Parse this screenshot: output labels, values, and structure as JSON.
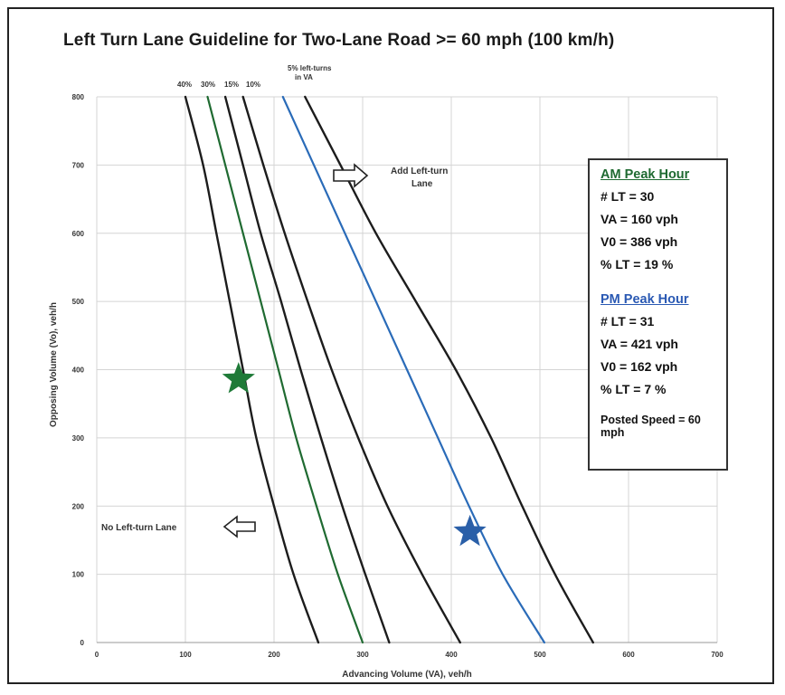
{
  "title": "Left Turn Lane Guideline for Two-Lane Road >= 60 mph (100 km/h)",
  "top_labels": {
    "pct40": "40%",
    "pct30": "30%",
    "pct15": "15%",
    "pct10": "10%",
    "pct5_line1": "5% left-turns",
    "pct5_line2": "in VA"
  },
  "annotations": {
    "add_lane_line1": "Add Left-turn",
    "add_lane_line2": "Lane",
    "no_lane": "No Left-turn Lane"
  },
  "info_box": {
    "am_header": "AM Peak Hour",
    "am_lt": "# LT = 30",
    "am_va": "VA = 160 vph",
    "am_vo": "V0 = 386 vph",
    "am_pct": "% LT = 19 %",
    "pm_header": "PM Peak Hour",
    "pm_lt": "# LT = 31",
    "pm_va": "VA = 421 vph",
    "pm_vo": "V0 = 162 vph",
    "pm_pct": "% LT = 7 %",
    "posted_speed": "Posted Speed = 60 mph"
  },
  "colors": {
    "curve_black": "#1c1c1c",
    "curve_green": "#1f6a31",
    "curve_blue": "#2a6bb8",
    "am_star": "#1f7a38",
    "pm_star": "#2a5fa8",
    "grid": "#d4d4d4"
  },
  "chart_data": {
    "type": "line",
    "title": "Left Turn Lane Guideline for Two-Lane Road >= 60 mph (100 km/h)",
    "xlabel": "Advancing Volume (VA), veh/h",
    "ylabel": "Opposing Volume (Vo), veh/h",
    "xlim": [
      0,
      700
    ],
    "ylim": [
      0,
      800
    ],
    "xticks": [
      0,
      100,
      200,
      300,
      400,
      500,
      600,
      700
    ],
    "yticks": [
      0,
      100,
      200,
      300,
      400,
      500,
      600,
      700,
      800
    ],
    "grid": true,
    "series": [
      {
        "name": "40%",
        "color": "black",
        "points": [
          [
            100,
            800
          ],
          [
            120,
            700
          ],
          [
            135,
            600
          ],
          [
            150,
            500
          ],
          [
            165,
            400
          ],
          [
            180,
            300
          ],
          [
            200,
            200
          ],
          [
            222,
            100
          ],
          [
            250,
            0
          ]
        ]
      },
      {
        "name": "30%",
        "color": "green",
        "points": [
          [
            125,
            800
          ],
          [
            145,
            700
          ],
          [
            165,
            600
          ],
          [
            185,
            500
          ],
          [
            205,
            400
          ],
          [
            225,
            300
          ],
          [
            248,
            200
          ],
          [
            272,
            100
          ],
          [
            300,
            0
          ]
        ]
      },
      {
        "name": "15%",
        "color": "black",
        "points": [
          [
            145,
            800
          ],
          [
            165,
            700
          ],
          [
            185,
            600
          ],
          [
            208,
            500
          ],
          [
            230,
            400
          ],
          [
            253,
            300
          ],
          [
            277,
            200
          ],
          [
            303,
            100
          ],
          [
            330,
            0
          ]
        ]
      },
      {
        "name": "10%",
        "color": "black",
        "points": [
          [
            165,
            800
          ],
          [
            188,
            700
          ],
          [
            212,
            600
          ],
          [
            238,
            500
          ],
          [
            265,
            400
          ],
          [
            295,
            300
          ],
          [
            328,
            200
          ],
          [
            367,
            100
          ],
          [
            410,
            0
          ]
        ]
      },
      {
        "name": "5% left-turns in VA (blue)",
        "color": "blue",
        "points": [
          [
            210,
            800
          ],
          [
            245,
            700
          ],
          [
            280,
            600
          ],
          [
            315,
            500
          ],
          [
            350,
            400
          ],
          [
            385,
            300
          ],
          [
            420,
            200
          ],
          [
            458,
            100
          ],
          [
            505,
            0
          ]
        ]
      },
      {
        "name": "5% left-turns in VA",
        "color": "black",
        "points": [
          [
            235,
            800
          ],
          [
            275,
            700
          ],
          [
            315,
            600
          ],
          [
            360,
            500
          ],
          [
            405,
            400
          ],
          [
            445,
            300
          ],
          [
            480,
            200
          ],
          [
            517,
            100
          ],
          [
            560,
            0
          ]
        ]
      }
    ],
    "markers": [
      {
        "label": "AM Peak Hour",
        "x": 160,
        "y": 386,
        "color": "green",
        "shape": "star"
      },
      {
        "label": "PM Peak Hour",
        "x": 421,
        "y": 162,
        "color": "blue",
        "shape": "star"
      }
    ]
  }
}
